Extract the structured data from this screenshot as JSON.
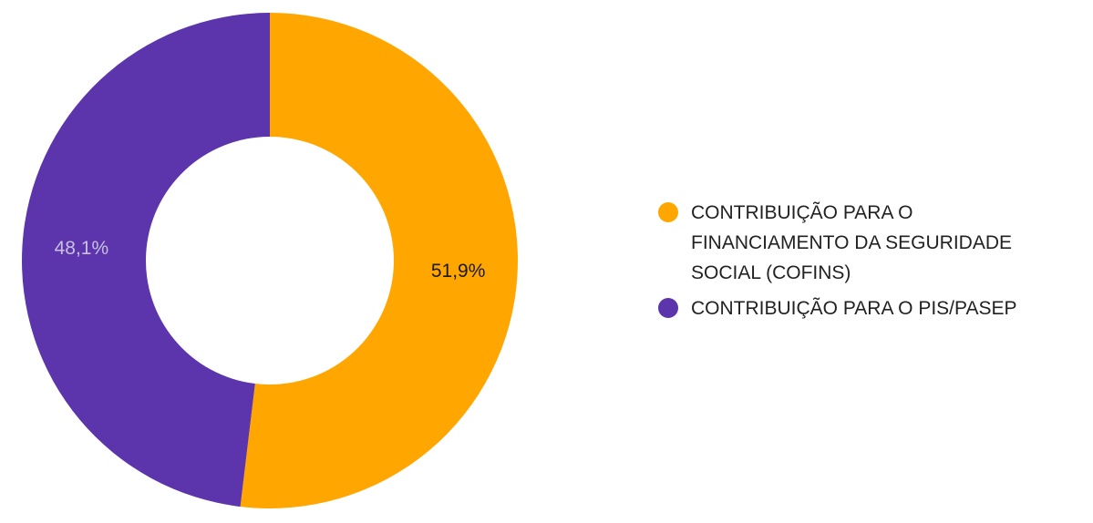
{
  "chart_data": {
    "type": "pie",
    "donut": true,
    "legend_position": "right",
    "series": [
      {
        "name": "CONTRIBUIÇÃO PARA O FINANCIAMENTO DA SEGURIDADE SOCIAL (COFINS)",
        "value": 51.9,
        "label": "51,9%",
        "color": "#ffa600",
        "label_color": "#1a1a1a"
      },
      {
        "name": "CONTRIBUIÇÃO PARA O PIS/PASEP",
        "value": 48.1,
        "label": "48,1%",
        "color": "#5c35ad",
        "label_color": "#c8c0de"
      }
    ]
  }
}
